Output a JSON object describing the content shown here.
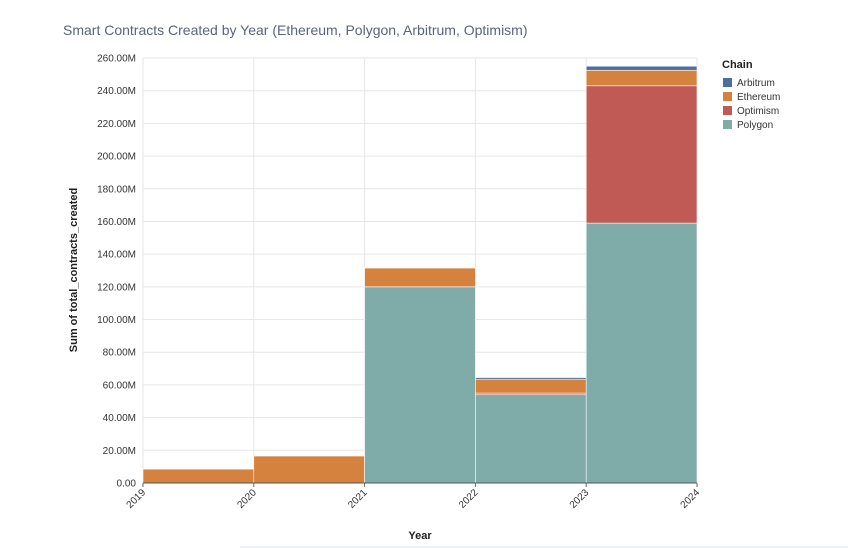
{
  "chart_data": {
    "type": "bar",
    "title": "Smart Contracts Created by Year (Ethereum, Polygon, Arbitrum, Optimism)",
    "xlabel": "Year",
    "ylabel": "Sum of total_contracts_created",
    "x_ticks": [
      "2019",
      "2020",
      "2021",
      "2022",
      "2023",
      "2024"
    ],
    "categories": [
      "2019",
      "2020",
      "2021",
      "2022",
      "2023"
    ],
    "y_ticks": [
      "0.00",
      "20.00M",
      "40.00M",
      "60.00M",
      "80.00M",
      "100.00M",
      "120.00M",
      "140.00M",
      "160.00M",
      "180.00M",
      "200.00M",
      "220.00M",
      "240.00M",
      "260.00M"
    ],
    "ylim": [
      0,
      260000000
    ],
    "stacked": true,
    "grid": true,
    "legend_title": "Chain",
    "legend_position": "top-right",
    "legend_order": [
      "Arbitrum",
      "Ethereum",
      "Optimism",
      "Polygon"
    ],
    "stack_order": [
      "Polygon",
      "Optimism",
      "Ethereum",
      "Arbitrum"
    ],
    "series": [
      {
        "name": "Arbitrum",
        "color": "#4e6e9e",
        "values": [
          0,
          0,
          0,
          1000000,
          2500000
        ]
      },
      {
        "name": "Ethereum",
        "color": "#d5823f",
        "values": [
          8500000,
          16500000,
          11500000,
          8500000,
          9500000
        ]
      },
      {
        "name": "Optimism",
        "color": "#bf5b54",
        "values": [
          0,
          0,
          0,
          1000000,
          84000000
        ]
      },
      {
        "name": "Polygon",
        "color": "#7faba8",
        "values": [
          0,
          0,
          120000000,
          54000000,
          159000000
        ]
      }
    ]
  }
}
